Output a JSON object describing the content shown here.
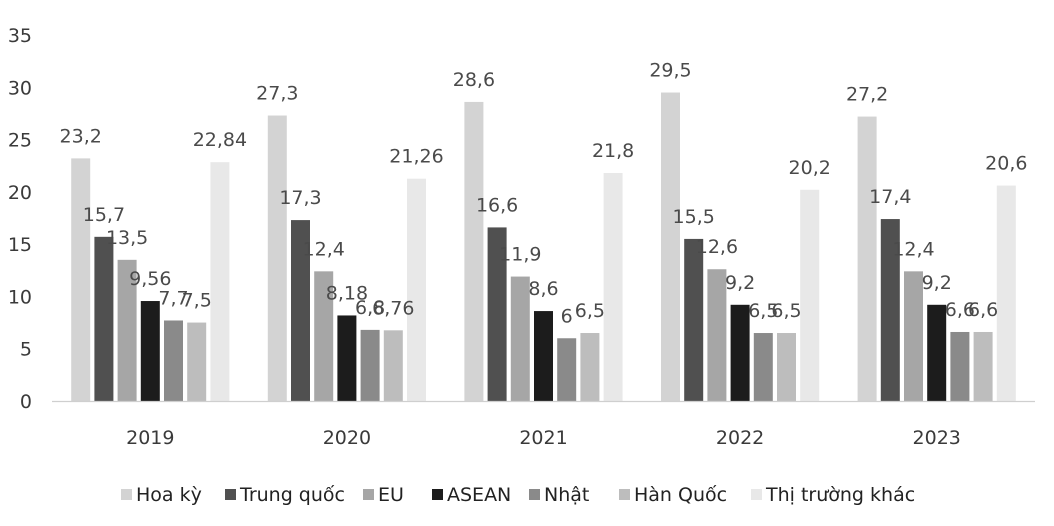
{
  "chart_data": {
    "type": "bar",
    "categories": [
      "2019",
      "2020",
      "2021",
      "2022",
      "2023"
    ],
    "series": [
      {
        "name": "Hoa kỳ",
        "color": "#d3d3d3",
        "values": [
          23.2,
          27.3,
          28.6,
          29.5,
          27.2
        ],
        "labels": [
          "23,2",
          "27,3",
          "28,6",
          "29,5",
          "27,2"
        ]
      },
      {
        "name": "Trung quốc",
        "color": "#505050",
        "values": [
          15.7,
          17.3,
          16.6,
          15.5,
          17.4
        ],
        "labels": [
          "15,7",
          "17,3",
          "16,6",
          "15,5",
          "17,4"
        ]
      },
      {
        "name": "EU",
        "color": "#a6a6a6",
        "values": [
          13.5,
          12.4,
          11.9,
          12.6,
          12.4
        ],
        "labels": [
          "13,5",
          "12,4",
          "11,9",
          "12,6",
          "12,4"
        ]
      },
      {
        "name": "ASEAN",
        "color": "#1c1c1c",
        "values": [
          9.56,
          8.18,
          8.6,
          9.2,
          9.2
        ],
        "labels": [
          "9,56",
          "8,18",
          "8,6",
          "9,2",
          "9,2"
        ]
      },
      {
        "name": "Nhật",
        "color": "#8a8a8a",
        "values": [
          7.7,
          6.8,
          6,
          6.5,
          6.6
        ],
        "labels": [
          "7,7",
          "6,8",
          "6",
          "6,5",
          "6,6"
        ]
      },
      {
        "name": "Hàn Quốc",
        "color": "#bdbdbd",
        "values": [
          7.5,
          6.76,
          6.5,
          6.5,
          6.6
        ],
        "labels": [
          "7,5",
          "6,76",
          "6,5",
          "6,5",
          "6,6"
        ]
      },
      {
        "name": "Thị trường khác",
        "color": "#e8e8e8",
        "values": [
          22.84,
          21.26,
          21.8,
          20.2,
          20.6
        ],
        "labels": [
          "22,84",
          "21,26",
          "21,8",
          "20,2",
          "20,6"
        ]
      }
    ],
    "ylim": [
      0,
      35
    ],
    "yticks": [
      0,
      5,
      10,
      15,
      20,
      25,
      30,
      35
    ],
    "grid": false,
    "legend_position": "bottom",
    "title": "",
    "xlabel": "",
    "ylabel": ""
  }
}
